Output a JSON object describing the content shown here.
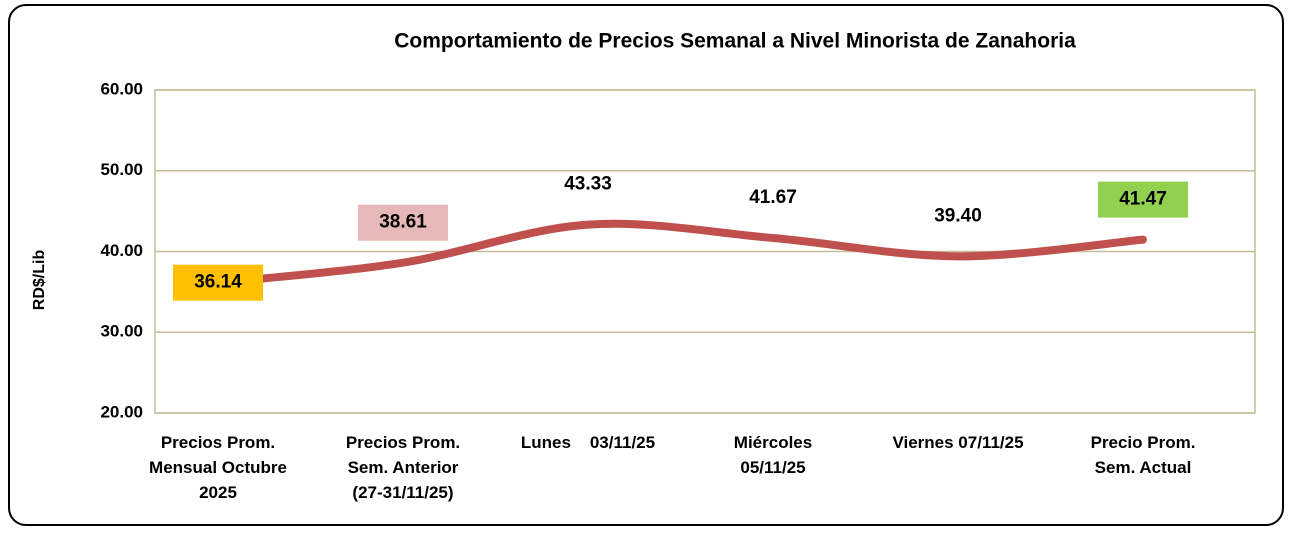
{
  "chart_data": {
    "type": "line",
    "title": "Comportamiento de Precios Semanal a Nivel Minorista de Zanahoria",
    "y_label": "RD$/Lib",
    "categories": [
      "Precios Prom.\nMensual Octubre\n2025",
      "Precios Prom.\nSem. Anterior\n(27-31/11/25)",
      "Lunes    03/11/25",
      "Miércoles\n05/11/25",
      "Viernes 07/11/25",
      "Precio Prom.\nSem. Actual"
    ],
    "series": [
      {
        "name": "Precio",
        "color": "#c0504d",
        "values": [
          36.14,
          38.61,
          43.33,
          41.67,
          39.4,
          41.47
        ],
        "value_labels": [
          "36.14",
          "38.61",
          "43.33",
          "41.67",
          "39.40",
          "41.47"
        ],
        "label_backgrounds": [
          "#ffc000",
          "#e6b8b7",
          null,
          null,
          null,
          "#92d050"
        ]
      }
    ],
    "ylim": [
      20,
      60
    ],
    "yticks": [
      {
        "value": 20,
        "label": "20.00"
      },
      {
        "value": 30,
        "label": "30.00"
      },
      {
        "value": 40,
        "label": "40.00"
      },
      {
        "value": 50,
        "label": "50.00"
      },
      {
        "value": 60,
        "label": "60.00"
      }
    ],
    "grid": true
  }
}
